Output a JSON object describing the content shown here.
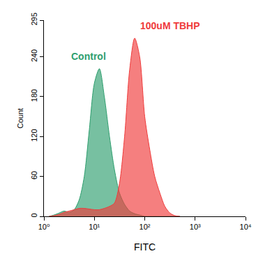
{
  "chart_data": {
    "type": "area",
    "x_label": "FITC",
    "y_label": "Count",
    "log": "x",
    "grid": false,
    "x": [
      1.26,
      1.58,
      2.0,
      2.51,
      3.16,
      3.98,
      5.01,
      6.31,
      7.94,
      10,
      12.6,
      15.8,
      20,
      25.1,
      31.6,
      39.8,
      50.1,
      63.1,
      79.4,
      100,
      126,
      158,
      200,
      251,
      316,
      398,
      501
    ],
    "series": [
      {
        "name": "Control",
        "color": "#2e9e6e",
        "values": [
          0,
          2,
          5,
          8,
          6,
          10,
          25,
          60,
          130,
          200,
          222,
          180,
          120,
          70,
          35,
          18,
          8,
          4,
          2,
          0,
          0,
          0,
          0,
          0,
          0,
          0,
          0
        ]
      },
      {
        "name": "100uM TBHP",
        "color": "#ef3b3b",
        "values": [
          0,
          1,
          3,
          6,
          8,
          10,
          12,
          12,
          11,
          10,
          10,
          12,
          15,
          20,
          50,
          120,
          220,
          268,
          240,
          150,
          100,
          60,
          35,
          15,
          5,
          1,
          0
        ]
      }
    ],
    "xlim": [
      1,
      10000
    ],
    "xticks": [
      {
        "value": 1,
        "label": "10⁰"
      },
      {
        "value": 10,
        "label": "10¹"
      },
      {
        "value": 100,
        "label": "10²"
      },
      {
        "value": 1000,
        "label": "10³"
      },
      {
        "value": 10000,
        "label": "10⁴"
      }
    ],
    "ylim": [
      0,
      295
    ],
    "yticks": [
      0,
      60,
      120,
      180,
      240,
      295
    ]
  }
}
